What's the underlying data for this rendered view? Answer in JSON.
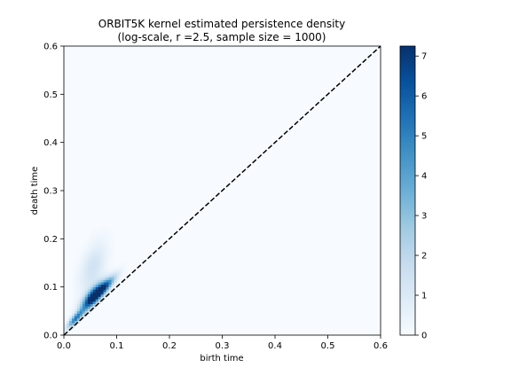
{
  "chart_data": {
    "type": "heatmap",
    "title_lines": [
      "ORBIT5K kernel estimated persistence density",
      "(log-scale, r =2.5, sample size = 1000)"
    ],
    "xlabel": "birth time",
    "ylabel": "death time",
    "xlim": [
      0.0,
      0.6
    ],
    "ylim": [
      0.0,
      0.6
    ],
    "x_ticks": [
      0.0,
      0.1,
      0.2,
      0.3,
      0.4,
      0.5,
      0.6
    ],
    "x_tick_labels": [
      "0.0",
      "0.1",
      "0.2",
      "0.3",
      "0.4",
      "0.5",
      "0.6"
    ],
    "y_ticks": [
      0.0,
      0.1,
      0.2,
      0.3,
      0.4,
      0.5,
      0.6
    ],
    "y_tick_labels": [
      "0.0",
      "0.1",
      "0.2",
      "0.3",
      "0.4",
      "0.5",
      "0.6"
    ],
    "colormap": "Blues",
    "colorbar": {
      "range": [
        0,
        7.25
      ],
      "ticks": [
        0,
        1,
        2,
        3,
        4,
        5,
        6,
        7
      ],
      "tick_labels": [
        "0",
        "1",
        "2",
        "3",
        "4",
        "5",
        "6",
        "7"
      ]
    },
    "diagonal": {
      "style": "dashed",
      "color": "#000000",
      "from": [
        0,
        0
      ],
      "to": [
        0.6,
        0.6
      ]
    },
    "density_blob": {
      "description_points": [
        {
          "birth": 0.05,
          "death": 0.08,
          "value": 7.0
        },
        {
          "birth": 0.07,
          "death": 0.1,
          "value": 5.5
        },
        {
          "birth": 0.06,
          "death": 0.15,
          "value": 1.0
        },
        {
          "birth": 0.02,
          "death": 0.03,
          "value": 5.0
        }
      ]
    },
    "grid": false,
    "legend": "none"
  }
}
